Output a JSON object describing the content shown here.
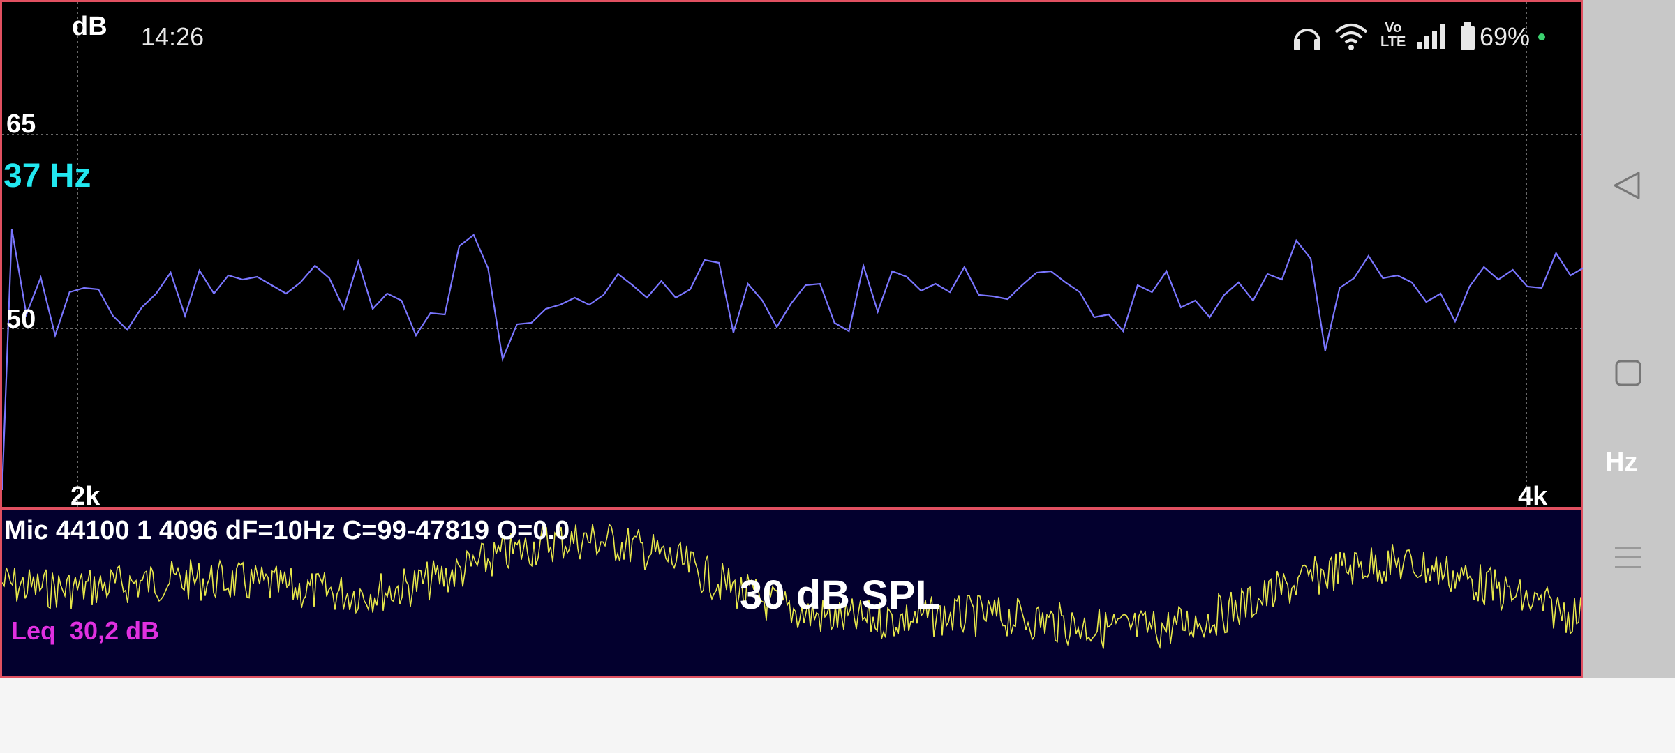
{
  "status_bar": {
    "time": "14:26",
    "icons": [
      "headphones-icon",
      "wifi-icon",
      "volte-icon",
      "signal-icon",
      "battery-icon"
    ],
    "volte_top": "Vo",
    "volte_bottom": "LTE",
    "battery": "69%"
  },
  "spectrum": {
    "y_unit": "dB",
    "y_ticks": [
      "65",
      "50"
    ],
    "x_ticks": [
      "2k",
      "4k"
    ],
    "peak_label": "37 Hz",
    "line_color": "#7a76ff",
    "peak_color": "#22e8f0"
  },
  "info": {
    "mic_line": "Mic 44100 1 4096 dF=10Hz C=99-47819 O=0.0",
    "spl": "30 dB SPL",
    "leq_label": "Leq",
    "leq_value": "30,2 dB",
    "wave_color": "#e8e84a",
    "leq_color": "#e030e0"
  },
  "sidebar": {
    "unit_button": "Hz",
    "nav": [
      "back-icon",
      "home-icon"
    ],
    "menu": "menu-icon"
  },
  "accent": "#e05060"
}
